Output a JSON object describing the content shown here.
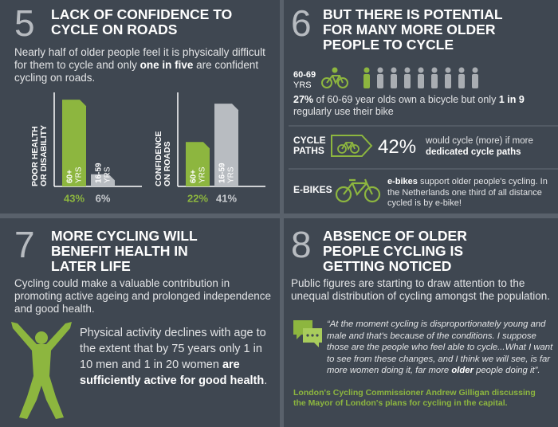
{
  "sections": [
    {
      "number": "5",
      "title": [
        "LACK OF CONFIDENCE TO",
        "CYCLE ON ROADS"
      ],
      "text": {
        "parts": [
          {
            "text": "Nearly half of older people feel it is physically difficult for them to cycle and only "
          },
          {
            "text": "one in five",
            "bold": true
          },
          {
            "text": " are confident cycling on roads."
          }
        ]
      },
      "charts": [
        {
          "type": "bar",
          "label": [
            "POOR HEALTH",
            "OR DISABILITY"
          ],
          "groups": [
            [
              "60+",
              "YRS"
            ],
            [
              "16-59",
              "YRS"
            ]
          ],
          "values": [
            43,
            6
          ],
          "value_labels": [
            "43%",
            "6%"
          ],
          "colors": [
            "#8db63f",
            "#b8bcc1"
          ],
          "ylim": [
            0,
            45
          ]
        },
        {
          "type": "bar",
          "label": [
            "CONFIDENCE",
            "ON ROADS"
          ],
          "groups": [
            [
              "60+",
              "YRS"
            ],
            [
              "16-59",
              "YRS"
            ]
          ],
          "values": [
            22,
            41
          ],
          "value_labels": [
            "22%",
            "41%"
          ],
          "colors": [
            "#8db63f",
            "#b8bcc1"
          ],
          "ylim": [
            0,
            45
          ]
        }
      ]
    },
    {
      "number": "6",
      "title": [
        "BUT THERE IS POTENTIAL",
        "FOR MANY MORE OLDER",
        "PEOPLE TO CYCLE"
      ],
      "age_label": [
        "60-69",
        "YRS"
      ],
      "text": {
        "parts": [
          {
            "text": "27%",
            "bold": true
          },
          {
            "text": " of 60-69 year olds own a bicycle but only "
          },
          {
            "text": "1 in 9",
            "bold": true
          },
          {
            "text": " regularly use their bike"
          }
        ]
      },
      "rows": [
        {
          "label": [
            "CYCLE",
            "PATHS"
          ],
          "stat": "42%",
          "text": {
            "parts": [
              {
                "text": "would cycle (more) if more "
              },
              {
                "text": "dedicated cycle paths",
                "bold": true
              }
            ]
          }
        },
        {
          "label": [
            "E-BIKES"
          ],
          "text": {
            "parts": [
              {
                "text": "e-bikes",
                "bold": true
              },
              {
                "text": " support older people's cycling. In the Netherlands one third of all distance cycled is by e-bike!"
              }
            ]
          }
        }
      ]
    },
    {
      "number": "7",
      "title": [
        "MORE CYCLING WILL",
        "BENEFIT HEALTH IN",
        "LATER LIFE"
      ],
      "text": {
        "parts": [
          {
            "text": "Cycling could make a valuable contribution in promoting active ageing and prolonged independence and good health."
          }
        ]
      },
      "detail": {
        "parts": [
          {
            "text": "Physical activity declines with age to the extent that by 75 years only 1 in 10 men and 1 in 20 women "
          },
          {
            "text": "are sufficiently active for good health",
            "bold": true
          },
          {
            "text": "."
          }
        ]
      }
    },
    {
      "number": "8",
      "title": [
        "ABSENCE OF OLDER",
        "PEOPLE CYCLING IS",
        "GETTING NOTICED"
      ],
      "text": {
        "parts": [
          {
            "text": "Public figures are starting to draw attention to the unequal distribution of cycling amongst the population."
          }
        ]
      },
      "quote": {
        "parts": [
          {
            "text": "“At the moment cycling is disproportionately young and male and that's because of the conditions. I suppose those are the people who feel able to cycle...What I want to see from these changes, and I think we will see, is far more women doing it, far more "
          },
          {
            "text": "older",
            "bold": true
          },
          {
            "text": " people doing it”."
          }
        ]
      },
      "attribution": "London's Cycling Commissioner Andrew Gilligan discussing the Mayor of London's plans for cycling in the capital."
    }
  ]
}
